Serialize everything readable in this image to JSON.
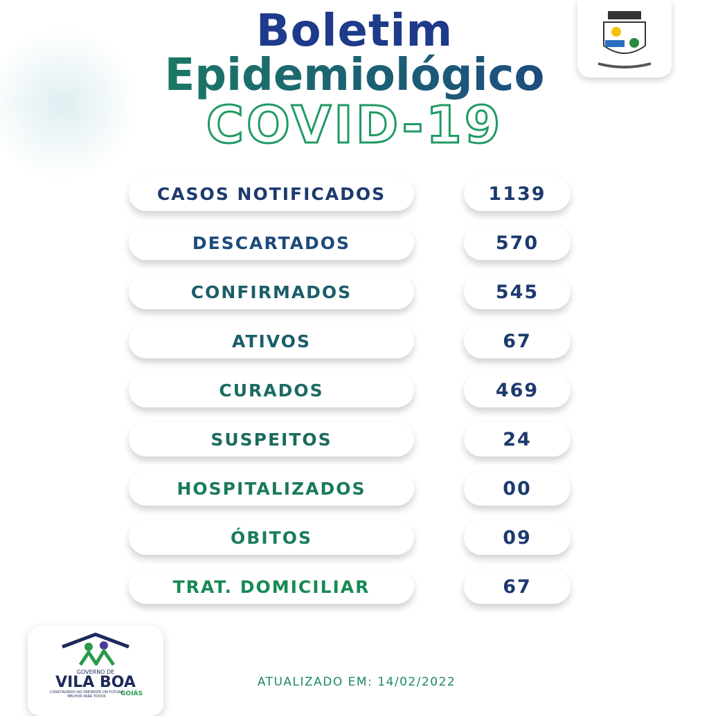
{
  "header": {
    "title_line1": "Boletim",
    "title_line2": "Epidemiológico",
    "title_line3": "COVID-19"
  },
  "table": {
    "rows": [
      [
        "CASOS NOTIFICADOS",
        "1139"
      ],
      [
        "DESCARTADOS",
        "570"
      ],
      [
        "CONFIRMADOS",
        "545"
      ],
      [
        "ATIVOS",
        "67"
      ],
      [
        "CURADOS",
        "469"
      ],
      [
        "SUSPEITOS",
        "24"
      ],
      [
        "HOSPITALIZADOS",
        "00"
      ],
      [
        "ÓBITOS",
        "09"
      ],
      [
        "TRAT. DOMICILIAR",
        "67"
      ]
    ]
  },
  "logo": {
    "line1": "GOVERNO DE",
    "line2": "VILA BOA",
    "line3": "GOIÁS",
    "slogan": "CONSTRUINDO NO PRESENTE UM FUTURO MELHOR PARA TODOS"
  },
  "footer": {
    "updated": "ATUALIZADO EM: 14/02/2022"
  }
}
